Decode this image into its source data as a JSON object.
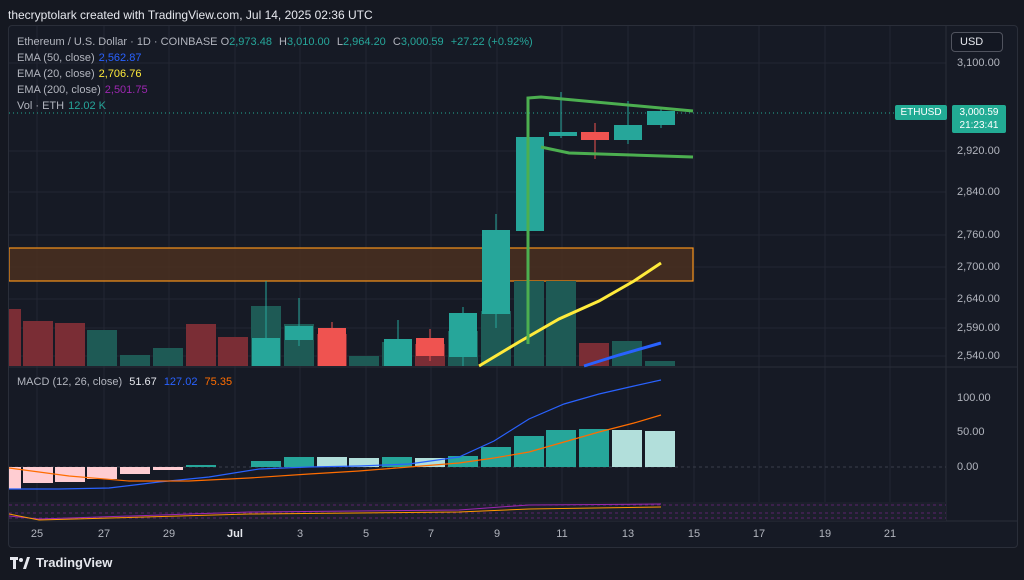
{
  "credit": "thecryptolark created with TradingView.com, Jul 14, 2025 02:36 UTC",
  "legend": {
    "title": "Ethereum / U.S. Dollar · 1D · COINBASE",
    "ohlc": [
      {
        "k": "O",
        "v": "2,973.48"
      },
      {
        "k": "H",
        "v": "3,010.00"
      },
      {
        "k": "L",
        "v": "2,964.20"
      },
      {
        "k": "C",
        "v": "3,000.59"
      }
    ],
    "change": "+27.22 (+0.92%)",
    "ema50": {
      "label": "EMA (50, close)",
      "value": "2,562.87",
      "color": "#2962ff"
    },
    "ema20": {
      "label": "EMA (20, close)",
      "value": "2,706.76",
      "color": "#ffeb3b"
    },
    "ema200": {
      "label": "EMA (200, close)",
      "value": "2,501.75",
      "color": "#9c27b0"
    },
    "vol": {
      "label": "Vol · ETH",
      "value": "12.02 K",
      "color": "#26a69a"
    }
  },
  "macd": {
    "label": "MACD (12, 26, close)",
    "hist_value": "51.67",
    "macd_value": "127.02",
    "signal_value": "75.35",
    "macd_color": "#2962ff",
    "signal_color": "#ff6d00"
  },
  "currency_button": "USD",
  "price_scale": [
    "3,100.00",
    "2,920.00",
    "2,840.00",
    "2,760.00",
    "2,700.00",
    "2,640.00",
    "2,590.00",
    "2,540.00"
  ],
  "macd_scale": [
    "100.00",
    "50.00",
    "0.00"
  ],
  "last_price": {
    "symbol": "ETHUSD",
    "price": "3,000.59",
    "countdown": "21:23:41"
  },
  "dates": [
    "25",
    "27",
    "29",
    "Jul",
    "3",
    "5",
    "7",
    "9",
    "11",
    "13",
    "15",
    "17",
    "19",
    "21"
  ],
  "footer": {
    "brand": "TradingView"
  },
  "colors": {
    "up": "#26a69a",
    "down": "#ef5350",
    "zone": "#f7931a"
  }
}
